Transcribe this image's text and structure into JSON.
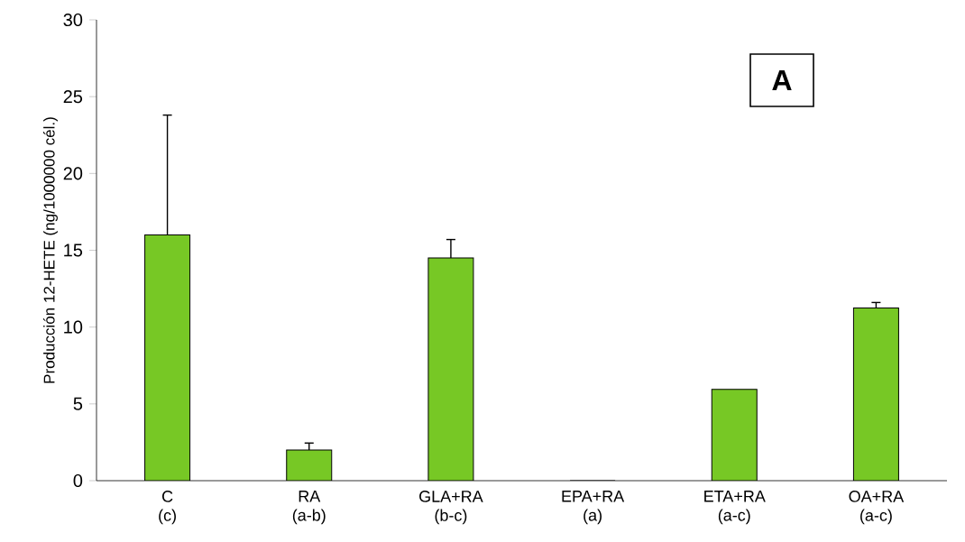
{
  "chart_data": {
    "type": "bar",
    "ylabel": "Producción 12-HETE (ng/1000000 cél.)",
    "categories": [
      "C\n(c)",
      "RA\n(a-b)",
      "GLA+RA\n(b-c)",
      "EPA+RA\n(a)",
      "ETA+RA\n(a-c)",
      "OA+RA\n(a-c)"
    ],
    "values": [
      16,
      2.0,
      14.5,
      0,
      5.95,
      11.25
    ],
    "errors": [
      [
        16,
        23.8
      ],
      [
        2.0,
        2.45
      ],
      [
        14.5,
        15.7
      ],
      null,
      null,
      [
        11.25,
        11.6
      ]
    ],
    "color": "#77c825",
    "ylim": [
      0,
      30
    ],
    "yticks": [
      0,
      5,
      10,
      15,
      20,
      25,
      30
    ],
    "annotations": [
      "A"
    ]
  }
}
